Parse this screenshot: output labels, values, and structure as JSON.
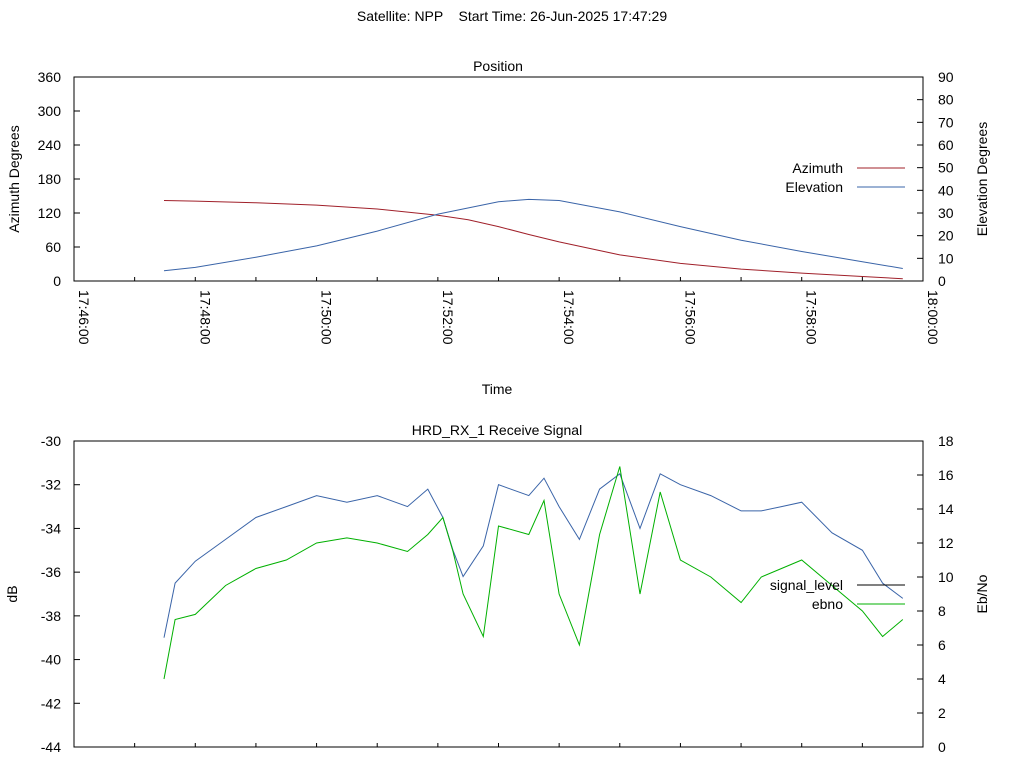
{
  "header": {
    "satellite_label": "Satellite: NPP",
    "start_time_label": "Start Time: 26-Jun-2025 17:47:29"
  },
  "chart_data": [
    {
      "type": "line",
      "title": "Position",
      "xlabel": "Time",
      "ylabel": "Azimuth Degrees",
      "y2label": "Elevation Degrees",
      "xlim": [
        "17:46:00",
        "18:00:00"
      ],
      "x_ticks": [
        "17:46:00",
        "17:48:00",
        "17:50:00",
        "17:52:00",
        "17:54:00",
        "17:56:00",
        "17:58:00",
        "18:00:00"
      ],
      "ylim": [
        0,
        360
      ],
      "y_ticks": [
        "0",
        "60",
        "120",
        "180",
        "240",
        "300",
        "360"
      ],
      "y2lim": [
        0,
        90
      ],
      "y2_ticks": [
        "0",
        "10",
        "20",
        "30",
        "40",
        "50",
        "60",
        "70",
        "80",
        "90"
      ],
      "legend_position": "right",
      "grid": false,
      "series": [
        {
          "name": "Azimuth",
          "axis": "left",
          "color": "#a0202a",
          "x": [
            "17:47:29",
            "17:48:00",
            "17:49:00",
            "17:50:00",
            "17:51:00",
            "17:52:00",
            "17:52:30",
            "17:53:00",
            "17:53:30",
            "17:54:00",
            "17:55:00",
            "17:56:00",
            "17:57:00",
            "17:58:00",
            "17:59:00",
            "17:59:40"
          ],
          "values": [
            142,
            141,
            138,
            134,
            127,
            116,
            108,
            96,
            82,
            69,
            46,
            31,
            21,
            14,
            8,
            4
          ]
        },
        {
          "name": "Elevation",
          "axis": "right",
          "color": "#3a64a8",
          "x": [
            "17:47:29",
            "17:48:00",
            "17:49:00",
            "17:50:00",
            "17:51:00",
            "17:52:00",
            "17:53:00",
            "17:53:30",
            "17:54:00",
            "17:55:00",
            "17:56:00",
            "17:57:00",
            "17:58:00",
            "17:59:00",
            "17:59:40"
          ],
          "values": [
            4.5,
            6,
            10.5,
            15.5,
            22,
            29.5,
            35,
            36,
            35.5,
            30.5,
            24,
            18,
            13,
            8.5,
            5.5
          ]
        }
      ]
    },
    {
      "type": "line",
      "title": "HRD_RX_1 Receive Signal",
      "xlabel": "",
      "ylabel": "dB",
      "y2label": "Eb/No",
      "xlim": [
        "17:46:00",
        "18:00:00"
      ],
      "ylim": [
        -44,
        -30
      ],
      "y_ticks": [
        "-44",
        "-42",
        "-40",
        "-38",
        "-36",
        "-34",
        "-32",
        "-30"
      ],
      "y2lim": [
        0,
        18
      ],
      "y2_ticks": [
        "0",
        "2",
        "4",
        "6",
        "8",
        "10",
        "12",
        "14",
        "16",
        "18"
      ],
      "legend_position": "right",
      "grid": false,
      "series": [
        {
          "name": "signal_level",
          "axis": "left",
          "color": "#3a64a8",
          "x": [
            "17:47:29",
            "17:47:40",
            "17:48:00",
            "17:48:30",
            "17:49:00",
            "17:49:30",
            "17:50:00",
            "17:50:30",
            "17:51:00",
            "17:51:30",
            "17:51:50",
            "17:52:05",
            "17:52:15",
            "17:52:25",
            "17:52:45",
            "17:53:00",
            "17:53:30",
            "17:53:45",
            "17:54:00",
            "17:54:20",
            "17:54:40",
            "17:55:00",
            "17:55:20",
            "17:55:40",
            "17:56:00",
            "17:56:30",
            "17:57:00",
            "17:57:20",
            "17:57:40",
            "17:58:00",
            "17:58:30",
            "17:59:00",
            "17:59:20",
            "17:59:40"
          ],
          "values": [
            -39,
            -36.5,
            -35.5,
            -34.5,
            -33.5,
            -33,
            -32.5,
            -32.8,
            -32.5,
            -33,
            -32.2,
            -33.5,
            -35,
            -36.2,
            -34.8,
            -32,
            -32.5,
            -31.7,
            -33,
            -34.5,
            -32.2,
            -31.5,
            -34,
            -31.5,
            -32,
            -32.5,
            -33.2,
            -33.2,
            -33,
            -32.8,
            -34.2,
            -35,
            -36.5,
            -37.2
          ]
        },
        {
          "name": "ebno",
          "axis": "right",
          "color": "#00b000",
          "x": [
            "17:47:29",
            "17:47:40",
            "17:48:00",
            "17:48:30",
            "17:49:00",
            "17:49:30",
            "17:50:00",
            "17:50:30",
            "17:51:00",
            "17:51:30",
            "17:51:50",
            "17:52:05",
            "17:52:15",
            "17:52:25",
            "17:52:45",
            "17:53:00",
            "17:53:30",
            "17:53:45",
            "17:54:00",
            "17:54:20",
            "17:54:40",
            "17:55:00",
            "17:55:20",
            "17:55:40",
            "17:56:00",
            "17:56:30",
            "17:57:00",
            "17:57:20",
            "17:57:40",
            "17:58:00",
            "17:58:30",
            "17:59:00",
            "17:59:20",
            "17:59:40"
          ],
          "values": [
            4,
            7.5,
            7.8,
            9.5,
            10.5,
            11,
            12,
            12.3,
            12,
            11.5,
            12.5,
            13.5,
            11.5,
            9,
            6.5,
            13,
            12.5,
            14.5,
            9,
            6,
            12.5,
            16.5,
            9,
            15,
            11,
            10,
            8.5,
            10,
            10.5,
            11,
            9.5,
            8,
            6.5,
            7.5
          ]
        }
      ]
    }
  ]
}
